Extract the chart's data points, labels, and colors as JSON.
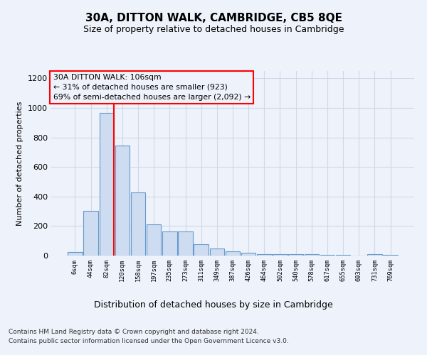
{
  "title": "30A, DITTON WALK, CAMBRIDGE, CB5 8QE",
  "subtitle": "Size of property relative to detached houses in Cambridge",
  "xlabel": "Distribution of detached houses by size in Cambridge",
  "ylabel": "Number of detached properties",
  "footer1": "Contains HM Land Registry data © Crown copyright and database right 2024.",
  "footer2": "Contains public sector information licensed under the Open Government Licence v3.0.",
  "annotation_title": "30A DITTON WALK: 106sqm",
  "annotation_line2": "← 31% of detached houses are smaller (923)",
  "annotation_line3": "69% of semi-detached houses are larger (2,092) →",
  "bar_color": "#cddcf0",
  "bar_edge_color": "#6699cc",
  "vline_color": "red",
  "vline_x_index": 2,
  "categories": [
    "6sqm",
    "44sqm",
    "82sqm",
    "120sqm",
    "158sqm",
    "197sqm",
    "235sqm",
    "273sqm",
    "311sqm",
    "349sqm",
    "387sqm",
    "426sqm",
    "464sqm",
    "502sqm",
    "540sqm",
    "578sqm",
    "617sqm",
    "655sqm",
    "693sqm",
    "731sqm",
    "769sqm"
  ],
  "values": [
    25,
    305,
    965,
    745,
    430,
    210,
    165,
    165,
    78,
    50,
    30,
    18,
    10,
    10,
    8,
    8,
    5,
    3,
    2,
    12,
    3
  ],
  "ylim": [
    0,
    1250
  ],
  "yticks": [
    0,
    200,
    400,
    600,
    800,
    1000,
    1200
  ],
  "background_color": "#eef2fa",
  "grid_color": "#d0d8e8",
  "ann_box_color": "#eef2fa",
  "ann_box_edge": "red"
}
